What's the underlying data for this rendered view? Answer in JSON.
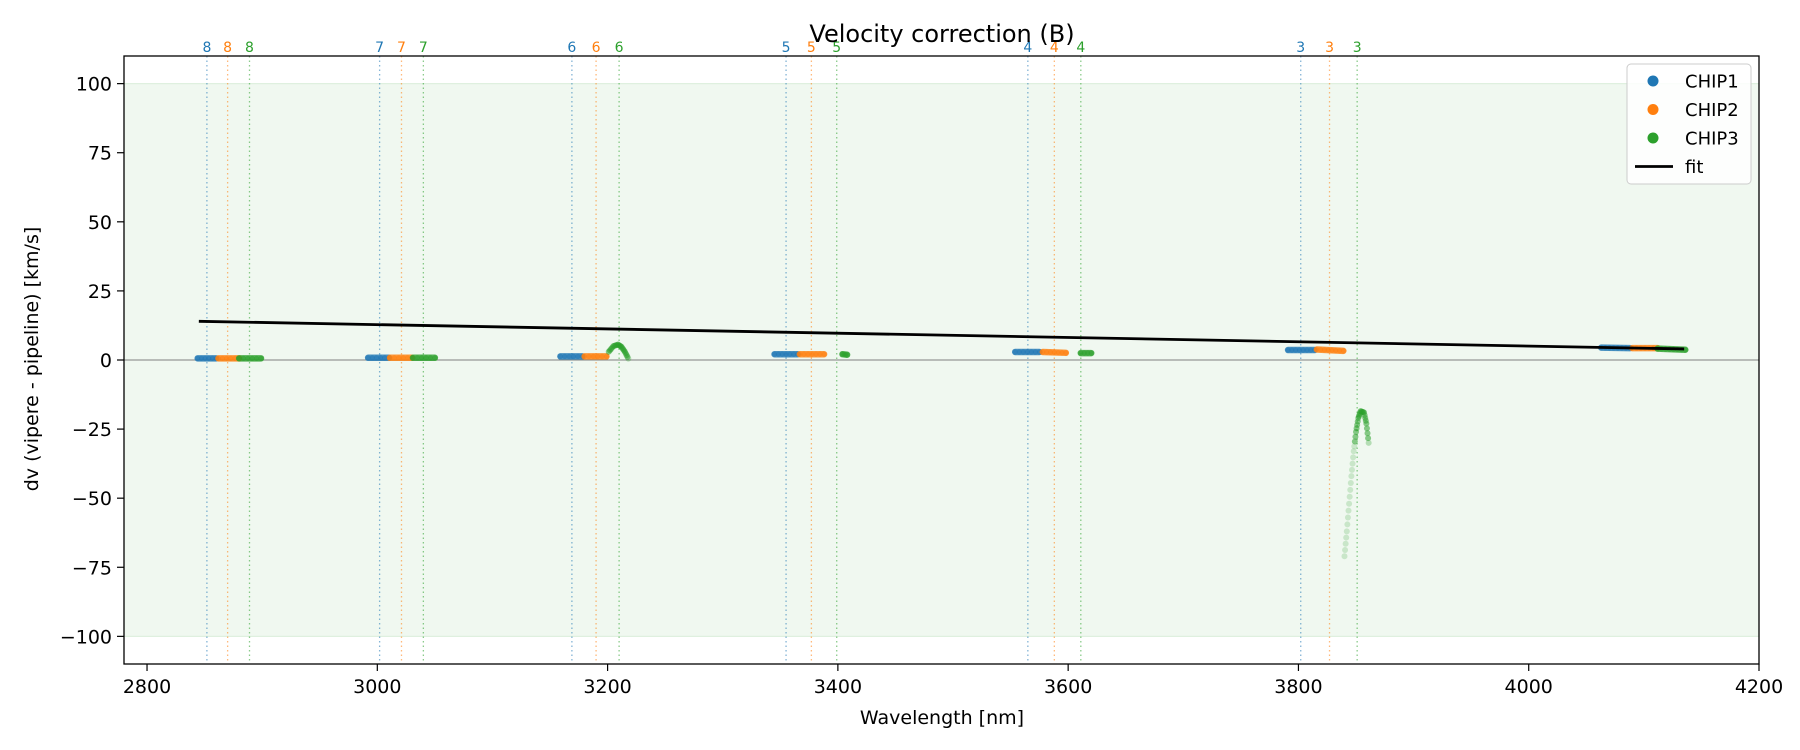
{
  "chart_data": {
    "type": "scatter",
    "title": "Velocity correction (B)",
    "xlabel": "Wavelength [nm]",
    "ylabel": "dv (vipere - pipeline) [km/s]",
    "xlim": [
      2780,
      4200
    ],
    "ylim": [
      -110,
      110
    ],
    "xticks": [
      2800,
      3000,
      3200,
      3400,
      3600,
      3800,
      4000,
      4200
    ],
    "yticks": [
      -100,
      -75,
      -50,
      -25,
      0,
      25,
      50,
      75,
      100
    ],
    "xtick_labels": [
      "2800",
      "3000",
      "3200",
      "3400",
      "3600",
      "3800",
      "4000",
      "4200"
    ],
    "ytick_labels": [
      "−100",
      "−75",
      "−50",
      "−25",
      "0",
      "25",
      "50",
      "75",
      "100"
    ],
    "band": [
      -100,
      100
    ],
    "zero_line": 0,
    "legend_position": "top-right",
    "colors": {
      "CHIP1": "#1f77b4",
      "CHIP2": "#ff7f0e",
      "CHIP3": "#2ca02c",
      "fit": "#000000",
      "band": "#2ca02c"
    },
    "legend": [
      {
        "label": "CHIP1",
        "kind": "marker",
        "color": "#1f77b4"
      },
      {
        "label": "CHIP2",
        "kind": "marker",
        "color": "#ff7f0e"
      },
      {
        "label": "CHIP3",
        "kind": "marker",
        "color": "#2ca02c"
      },
      {
        "label": "fit",
        "kind": "line",
        "color": "#000000"
      }
    ],
    "order_lines": [
      {
        "x": 2852,
        "label": "8",
        "chip": "CHIP1"
      },
      {
        "x": 2870,
        "label": "8",
        "chip": "CHIP2"
      },
      {
        "x": 2889,
        "label": "8",
        "chip": "CHIP3"
      },
      {
        "x": 3002,
        "label": "7",
        "chip": "CHIP1"
      },
      {
        "x": 3021,
        "label": "7",
        "chip": "CHIP2"
      },
      {
        "x": 3040,
        "label": "7",
        "chip": "CHIP3"
      },
      {
        "x": 3169,
        "label": "6",
        "chip": "CHIP1"
      },
      {
        "x": 3190,
        "label": "6",
        "chip": "CHIP2"
      },
      {
        "x": 3210,
        "label": "6",
        "chip": "CHIP3"
      },
      {
        "x": 3355,
        "label": "5",
        "chip": "CHIP1"
      },
      {
        "x": 3377,
        "label": "5",
        "chip": "CHIP2"
      },
      {
        "x": 3399,
        "label": "5",
        "chip": "CHIP3"
      },
      {
        "x": 3565,
        "label": "4",
        "chip": "CHIP1"
      },
      {
        "x": 3588,
        "label": "4",
        "chip": "CHIP2"
      },
      {
        "x": 3611,
        "label": "4",
        "chip": "CHIP3"
      },
      {
        "x": 3802,
        "label": "3",
        "chip": "CHIP1"
      },
      {
        "x": 3827,
        "label": "3",
        "chip": "CHIP2"
      },
      {
        "x": 3851,
        "label": "3",
        "chip": "CHIP3"
      }
    ],
    "fit": {
      "x": [
        2845,
        4135
      ],
      "y": [
        14,
        4
      ]
    },
    "series": [
      {
        "name": "CHIP1",
        "segments": [
          {
            "x0": 2844,
            "x1": 2860,
            "y0": 0.6,
            "y1": 0.6
          },
          {
            "x0": 2992,
            "x1": 3010,
            "y0": 0.8,
            "y1": 0.8
          },
          {
            "x0": 3159,
            "x1": 3178,
            "y0": 1.3,
            "y1": 1.3
          },
          {
            "x0": 3345,
            "x1": 3365,
            "y0": 2.1,
            "y1": 2.1
          },
          {
            "x0": 3554,
            "x1": 3575,
            "y0": 2.9,
            "y1": 2.9
          },
          {
            "x0": 3791,
            "x1": 3814,
            "y0": 3.6,
            "y1": 3.6
          },
          {
            "x0": 4063,
            "x1": 4088,
            "y0": 4.5,
            "y1": 4.3
          }
        ]
      },
      {
        "name": "CHIP2",
        "segments": [
          {
            "x0": 2862,
            "x1": 2880,
            "y0": 0.6,
            "y1": 0.6
          },
          {
            "x0": 3011,
            "x1": 3030,
            "y0": 0.8,
            "y1": 0.8
          },
          {
            "x0": 3180,
            "x1": 3199,
            "y0": 1.3,
            "y1": 1.3
          },
          {
            "x0": 3367,
            "x1": 3388,
            "y0": 2.1,
            "y1": 2.1
          },
          {
            "x0": 3578,
            "x1": 3598,
            "y0": 2.9,
            "y1": 2.6
          },
          {
            "x0": 3816,
            "x1": 3839,
            "y0": 3.8,
            "y1": 3.3
          },
          {
            "x0": 4090,
            "x1": 4112,
            "y0": 4.3,
            "y1": 4.3
          }
        ]
      },
      {
        "name": "CHIP3",
        "segments": [
          {
            "x0": 2880,
            "x1": 2899,
            "y0": 0.6,
            "y1": 0.6
          },
          {
            "x0": 3031,
            "x1": 3050,
            "y0": 0.8,
            "y1": 0.8
          },
          {
            "x0": 3404,
            "x1": 3408,
            "y0": 2.1,
            "y1": 1.9
          },
          {
            "x0": 3611,
            "x1": 3620,
            "y0": 2.5,
            "y1": 2.5
          },
          {
            "x0": 4112,
            "x1": 4136,
            "y0": 4.1,
            "y1": 3.7
          }
        ],
        "curves": [
          {
            "points": [
              [
                3201,
                3
              ],
              [
                3205,
                5
              ],
              [
                3209,
                5.6
              ],
              [
                3212,
                4.8
              ],
              [
                3215,
                3
              ],
              [
                3218,
                0.5
              ]
            ]
          },
          {
            "points": [
              [
                3840,
                -71
              ],
              [
                3842,
                -62
              ],
              [
                3844,
                -52
              ],
              [
                3846,
                -42
              ],
              [
                3848,
                -33
              ],
              [
                3850,
                -26
              ],
              [
                3852,
                -21
              ],
              [
                3854,
                -18.5
              ],
              [
                3857,
                -19
              ],
              [
                3859,
                -23
              ],
              [
                3861,
                -30
              ]
            ]
          }
        ]
      }
    ]
  }
}
